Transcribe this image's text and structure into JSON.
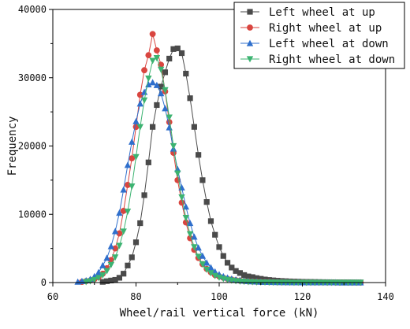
{
  "chart_data": {
    "type": "line",
    "title": "",
    "xlabel": "Wheel/rail vertical force (kN)",
    "ylabel": "Frequency",
    "xlim": [
      60,
      140
    ],
    "ylim": [
      0,
      40000
    ],
    "xticks": [
      60,
      80,
      100,
      120,
      140
    ],
    "yticks": [
      0,
      10000,
      20000,
      30000,
      40000
    ],
    "grid": false,
    "legend_position": "top-right",
    "series": [
      {
        "name": "Left wheel at up",
        "color": "#4a4a4a",
        "marker": "square",
        "x": [
          72,
          73,
          74,
          75,
          76,
          77,
          78,
          79,
          80,
          81,
          82,
          83,
          84,
          85,
          86,
          87,
          88,
          89,
          90,
          91,
          92,
          93,
          94,
          95,
          96,
          97,
          98,
          99,
          100,
          101,
          102,
          103,
          104,
          105,
          106,
          107,
          108,
          109,
          110,
          111,
          112,
          113,
          114,
          115,
          116,
          117,
          118,
          119,
          120,
          121,
          122,
          123,
          124,
          125,
          126,
          127,
          128,
          129,
          130,
          131,
          132,
          133,
          134
        ],
        "y": [
          100,
          200,
          300,
          400,
          700,
          1300,
          2500,
          3700,
          5900,
          8700,
          12800,
          17600,
          22800,
          26000,
          28700,
          30800,
          32800,
          34200,
          34300,
          33600,
          30600,
          27000,
          22800,
          18700,
          15000,
          11800,
          9000,
          7000,
          5200,
          3900,
          2900,
          2200,
          1700,
          1400,
          1100,
          900,
          800,
          650,
          550,
          450,
          380,
          320,
          270,
          230,
          200,
          170,
          150,
          130,
          110,
          100,
          90,
          80,
          70,
          60,
          55,
          50,
          45,
          40,
          35,
          30,
          25,
          20,
          15
        ]
      },
      {
        "name": "Right wheel at up",
        "color": "#d9453f",
        "marker": "circle",
        "x": [
          67,
          68,
          69,
          70,
          71,
          72,
          73,
          74,
          75,
          76,
          77,
          78,
          79,
          80,
          81,
          82,
          83,
          84,
          85,
          86,
          87,
          88,
          89,
          90,
          91,
          92,
          93,
          94,
          95,
          96,
          97,
          98,
          99,
          100,
          101,
          102,
          103,
          104,
          105,
          106,
          107,
          108,
          109,
          110,
          111,
          112,
          113,
          114,
          115,
          116,
          117,
          118,
          119,
          120,
          121,
          122,
          123,
          124,
          125,
          126,
          127,
          128,
          129,
          130,
          131,
          132,
          133,
          134
        ],
        "y": [
          100,
          200,
          300,
          500,
          800,
          1300,
          2100,
          3300,
          5000,
          7200,
          10500,
          14300,
          18200,
          22800,
          27500,
          31100,
          33300,
          36400,
          34000,
          31900,
          28000,
          23500,
          19000,
          15000,
          11700,
          8800,
          6500,
          4800,
          3600,
          2700,
          2000,
          1500,
          1100,
          900,
          700,
          550,
          450,
          350,
          280,
          220,
          180,
          150,
          120,
          100,
          90,
          80,
          70,
          60,
          50,
          45,
          40,
          35,
          30,
          25,
          20,
          18,
          16,
          14,
          12,
          10,
          9,
          8,
          7,
          6,
          5,
          4,
          3,
          2
        ]
      },
      {
        "name": "Left wheel at down",
        "color": "#2f6fcc",
        "marker": "triangle-up",
        "x": [
          66,
          67,
          68,
          69,
          70,
          71,
          72,
          73,
          74,
          75,
          76,
          77,
          78,
          79,
          80,
          81,
          82,
          83,
          84,
          85,
          86,
          87,
          88,
          89,
          90,
          91,
          92,
          93,
          94,
          95,
          96,
          97,
          98,
          99,
          100,
          101,
          102,
          103,
          104,
          105,
          106,
          107,
          108,
          109,
          110,
          111,
          112,
          113,
          114,
          115,
          116,
          117,
          118,
          119,
          120,
          121,
          122,
          123,
          124,
          125,
          126,
          127,
          128,
          129,
          130,
          131,
          132,
          133,
          134
        ],
        "y": [
          100,
          200,
          300,
          500,
          900,
          1500,
          2500,
          3600,
          5300,
          7500,
          10200,
          13600,
          17200,
          20600,
          23600,
          26200,
          27900,
          29000,
          29300,
          28900,
          27700,
          25500,
          22700,
          19600,
          16600,
          13900,
          11100,
          8700,
          6700,
          5100,
          3900,
          2900,
          2200,
          1600,
          1200,
          900,
          700,
          550,
          420,
          330,
          260,
          200,
          160,
          130,
          100,
          85,
          70,
          60,
          50,
          42,
          36,
          30,
          25,
          21,
          18,
          15,
          13,
          11,
          9,
          8,
          7,
          6,
          5,
          4,
          3,
          3,
          2,
          2,
          1
        ]
      },
      {
        "name": "Right wheel at down",
        "color": "#3cb371",
        "marker": "triangle-down",
        "x": [
          68,
          69,
          70,
          71,
          72,
          73,
          74,
          75,
          76,
          77,
          78,
          79,
          80,
          81,
          82,
          83,
          84,
          85,
          86,
          87,
          88,
          89,
          90,
          91,
          92,
          93,
          94,
          95,
          96,
          97,
          98,
          99,
          100,
          101,
          102,
          103,
          104,
          105,
          106,
          107,
          108,
          109,
          110,
          111,
          112,
          113,
          114,
          115,
          116,
          117,
          118,
          119,
          120,
          121,
          122,
          123,
          124,
          125,
          126,
          127,
          128,
          129,
          130,
          131,
          132,
          133,
          134
        ],
        "y": [
          100,
          200,
          400,
          700,
          1100,
          1700,
          2600,
          3700,
          5400,
          7500,
          10400,
          14100,
          18400,
          22800,
          26700,
          29900,
          32500,
          32900,
          31200,
          28200,
          24200,
          20000,
          16000,
          12500,
          9500,
          7100,
          5200,
          3800,
          2700,
          1900,
          1400,
          1000,
          750,
          560,
          420,
          320,
          240,
          180,
          140,
          110,
          85,
          65,
          50,
          40,
          32,
          26,
          21,
          17,
          14,
          11,
          9,
          7,
          6,
          5,
          4,
          3,
          3,
          2,
          2,
          1,
          1,
          1,
          1,
          1,
          1,
          1,
          1
        ]
      }
    ]
  }
}
